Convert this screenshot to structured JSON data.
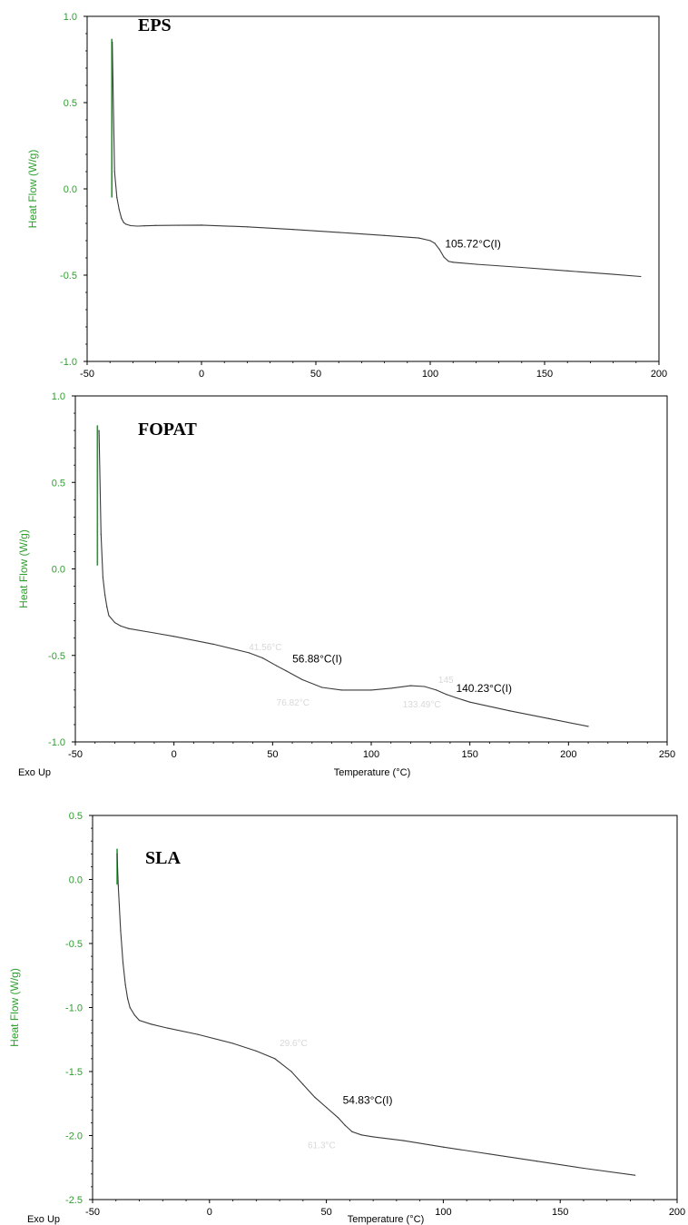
{
  "colors": {
    "axis_label": "#2e9e2e",
    "curve": "#3a3a3a",
    "spike": "#1f9a2f",
    "frame": "#000000"
  },
  "chart_data": [
    {
      "type": "line",
      "title": "EPS",
      "xlabel": "",
      "ylabel": "Heat Flow (W/g)",
      "corner_label": "",
      "xlim": [
        -50,
        200
      ],
      "ylim": [
        -1.0,
        1.0
      ],
      "xticks": [
        -50,
        0,
        50,
        100,
        150,
        200
      ],
      "xtick_labels": [
        "-50",
        "0",
        "50",
        "100",
        "150",
        "200"
      ],
      "yticks": [
        -1.0,
        -0.5,
        0.0,
        0.5,
        1.0
      ],
      "ytick_labels": [
        "-1.0",
        "-0.5",
        "0.0",
        "0.5",
        "1.0"
      ],
      "spike": {
        "x": -39.2,
        "y_top": 0.87,
        "y_bottom": -0.05
      },
      "x": [
        -39,
        -38,
        -37,
        -36,
        -35,
        -34,
        -33,
        -31,
        -28,
        -25,
        -20,
        -10,
        0,
        20,
        40,
        60,
        80,
        95,
        100,
        102,
        104,
        106,
        108,
        110,
        120,
        140,
        160,
        180,
        192
      ],
      "y": [
        0.85,
        0.1,
        -0.05,
        -0.12,
        -0.17,
        -0.195,
        -0.205,
        -0.213,
        -0.216,
        -0.214,
        -0.212,
        -0.211,
        -0.21,
        -0.22,
        -0.235,
        -0.252,
        -0.27,
        -0.285,
        -0.3,
        -0.315,
        -0.35,
        -0.395,
        -0.42,
        -0.425,
        -0.437,
        -0.455,
        -0.475,
        -0.495,
        -0.508
      ],
      "annotations": [
        {
          "text": "105.72°C(I)",
          "x": 106.5,
          "y": -0.34
        }
      ],
      "faint_annotations": []
    },
    {
      "type": "line",
      "title": "FOPAT",
      "xlabel": "Temperature (°C)",
      "ylabel": "Heat Flow (W/g)",
      "corner_label": "Exo Up",
      "xlim": [
        -50,
        250
      ],
      "ylim": [
        -1.0,
        1.0
      ],
      "xticks": [
        -50,
        0,
        50,
        100,
        150,
        200,
        250
      ],
      "xtick_labels": [
        "-50",
        "0",
        "50",
        "100",
        "150",
        "200",
        "250"
      ],
      "yticks": [
        -1.0,
        -0.5,
        0.0,
        0.5,
        1.0
      ],
      "ytick_labels": [
        "-1.0",
        "-0.5",
        "0.0",
        "0.5",
        "1.0"
      ],
      "spike": {
        "x": -38.8,
        "y_top": 0.83,
        "y_bottom": 0.02
      },
      "x": [
        -38,
        -37,
        -36,
        -35,
        -34,
        -33,
        -30,
        -27,
        -23,
        -10,
        0,
        20,
        38,
        45,
        52,
        57,
        65,
        75,
        85,
        100,
        110,
        120,
        127,
        133,
        138,
        143,
        150,
        170,
        190,
        210
      ],
      "y": [
        0.8,
        0.2,
        -0.05,
        -0.15,
        -0.22,
        -0.27,
        -0.31,
        -0.33,
        -0.345,
        -0.37,
        -0.39,
        -0.435,
        -0.485,
        -0.515,
        -0.56,
        -0.59,
        -0.64,
        -0.685,
        -0.7,
        -0.7,
        -0.69,
        -0.675,
        -0.68,
        -0.7,
        -0.725,
        -0.745,
        -0.77,
        -0.82,
        -0.865,
        -0.91
      ],
      "annotations": [
        {
          "text": "56.88°C(I)",
          "x": 60,
          "y": -0.54
        },
        {
          "text": "140.23°C(I)",
          "x": 143,
          "y": -0.71
        }
      ],
      "faint_annotations": [
        {
          "text": "41.56°C",
          "x": 38,
          "y": -0.47
        },
        {
          "text": "76.82°C",
          "x": 52,
          "y": -0.79
        },
        {
          "text": "133.49°C",
          "x": 116,
          "y": -0.8
        },
        {
          "text": "145",
          "x": 134,
          "y": -0.66
        }
      ]
    },
    {
      "type": "line",
      "title": "SLA",
      "xlabel": "Temperature (°C)",
      "ylabel": "Heat Flow (W/g)",
      "corner_label": "Exo Up",
      "xlim": [
        -50,
        200
      ],
      "ylim": [
        -2.5,
        0.5
      ],
      "xticks": [
        -50,
        0,
        50,
        100,
        150,
        200
      ],
      "xtick_labels": [
        "-50",
        "0",
        "50",
        "100",
        "150",
        "200"
      ],
      "yticks": [
        -2.5,
        -2.0,
        -1.5,
        -1.0,
        -0.5,
        0.0,
        0.5
      ],
      "ytick_labels": [
        "-2.5",
        "-2.0",
        "-1.5",
        "-1.0",
        "-0.5",
        "0.0",
        "0.5"
      ],
      "spike": {
        "x": -39.5,
        "y_top": 0.24,
        "y_bottom": -0.04
      },
      "x": [
        -39.5,
        -39,
        -38,
        -37,
        -36,
        -35,
        -34,
        -32,
        -30,
        -25,
        -18,
        -5,
        10,
        20,
        28,
        35,
        40,
        45,
        50,
        55,
        58,
        61,
        65,
        70,
        83,
        100,
        120,
        140,
        160,
        182
      ],
      "y": [
        0.2,
        -0.05,
        -0.4,
        -0.65,
        -0.82,
        -0.93,
        -1.0,
        -1.06,
        -1.1,
        -1.13,
        -1.16,
        -1.21,
        -1.28,
        -1.34,
        -1.4,
        -1.5,
        -1.6,
        -1.7,
        -1.78,
        -1.86,
        -1.92,
        -1.97,
        -1.995,
        -2.01,
        -2.04,
        -2.09,
        -2.145,
        -2.2,
        -2.255,
        -2.31
      ],
      "annotations": [
        {
          "text": "54.83°C(I)",
          "x": 57,
          "y": -1.75
        }
      ],
      "faint_annotations": [
        {
          "text": "29.6°C",
          "x": 30,
          "y": -1.3
        },
        {
          "text": "61.3°C",
          "x": 42,
          "y": -2.1
        }
      ]
    }
  ]
}
